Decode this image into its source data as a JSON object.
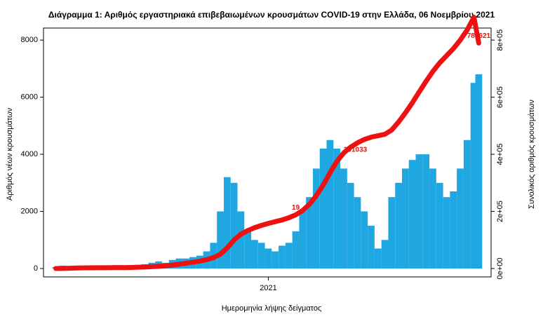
{
  "chart_data": {
    "type": "bar",
    "title": "Διάγραμμα 1: Αριθμός εργαστηριακά επιβεβαιωμένων κρουσμάτων COVID-19 στην Ελλάδα, 06 Νοεμβρίου 2021",
    "x_label": "Ημερομηνία λήψης δείγματος",
    "y_label": "Αριθμός νέων κρουσμάτων",
    "y2_label": "Συνολικός αριθμός κρουσμάτων",
    "x": [
      0,
      10,
      20,
      30,
      40,
      50,
      60,
      70,
      80,
      90,
      100,
      110,
      120,
      130,
      140,
      150,
      160,
      170,
      180,
      190,
      200,
      210,
      220,
      230,
      240,
      250,
      260,
      270,
      280,
      290,
      300,
      310,
      320,
      330,
      340,
      350,
      360,
      370,
      380,
      390,
      400,
      410,
      420,
      430,
      440,
      450,
      460,
      470,
      480,
      490,
      500,
      510,
      520,
      530,
      540,
      550,
      560,
      570,
      580,
      590,
      600,
      610,
      617
    ],
    "series": [
      {
        "type": "bar",
        "color": "#1ea7e1",
        "values": [
          50,
          100,
          80,
          60,
          20,
          15,
          20,
          20,
          30,
          40,
          60,
          80,
          120,
          150,
          200,
          250,
          200,
          300,
          350,
          350,
          400,
          450,
          600,
          900,
          2000,
          3200,
          3000,
          2000,
          1300,
          1000,
          900,
          700,
          600,
          800,
          900,
          1300,
          2000,
          2500,
          3500,
          4200,
          4500,
          4200,
          3500,
          3000,
          2500,
          2000,
          1500,
          700,
          1000,
          2500,
          3000,
          3500,
          3800,
          4000,
          4000,
          3500,
          3000,
          2500,
          2700,
          3500,
          4500,
          6500,
          6800
        ]
      },
      {
        "type": "line",
        "axis": "y2",
        "color": "#ee1111",
        "values": [
          0,
          300,
          1000,
          1800,
          2300,
          2500,
          2700,
          2900,
          3100,
          3300,
          3000,
          3800,
          4500,
          5300,
          6500,
          7800,
          9500,
          12000,
          15000,
          18500,
          22000,
          26000,
          31000,
          38000,
          50000,
          72000,
          100000,
          120000,
          133000,
          143000,
          151000,
          158000,
          164000,
          170000,
          178000,
          188000,
          203000,
          225000,
          255000,
          292000,
          335000,
          375000,
          405000,
          425000,
          440000,
          452000,
          460000,
          465000,
          470000,
          485000,
          513000,
          545000,
          580000,
          618000,
          655000,
          690000,
          720000,
          745000,
          770000,
          800000,
          835000,
          880000,
          789621
        ]
      }
    ],
    "annotations": [
      {
        "x": 350,
        "y": 188000,
        "text": "19"
      },
      {
        "x": 437,
        "y": 391033,
        "text": "391033"
      },
      {
        "x": 617,
        "y": 789621,
        "text": "789621"
      }
    ],
    "xlim": [
      -18,
      635
    ],
    "xticks": [
      {
        "value": 310,
        "label": "2021"
      }
    ],
    "ylim": [
      0,
      8200
    ],
    "yticks": [
      0,
      2000,
      4000,
      6000,
      8000
    ],
    "y2lim": [
      0,
      820000
    ],
    "y2ticks": [
      {
        "value": 0,
        "label": "0e+00"
      },
      {
        "value": 200000,
        "label": "2e+05"
      },
      {
        "value": 400000,
        "label": "4e+05"
      },
      {
        "value": 600000,
        "label": "6e+05"
      },
      {
        "value": 800000,
        "label": "8e+05"
      }
    ]
  }
}
